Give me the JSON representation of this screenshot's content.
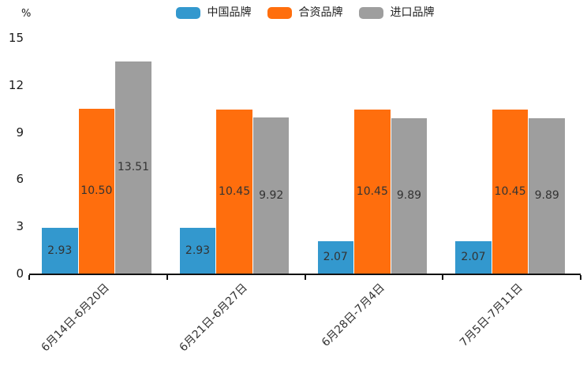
{
  "chart_data": {
    "type": "bar",
    "title": "",
    "ylabel": "%",
    "xlabel": "",
    "ylim": [
      0,
      15
    ],
    "y_ticks": [
      0,
      3,
      6,
      9,
      12,
      15
    ],
    "grid": false,
    "legend_position": "top-center",
    "categories": [
      "6月14日-6月20日",
      "6月21日-6月27日",
      "6月28日-7月4日",
      "7月5日-7月11日"
    ],
    "series": [
      {
        "name": "中国品牌",
        "color": "#3398CE",
        "values": [
          2.93,
          2.93,
          2.07,
          2.07
        ],
        "labels": [
          "2.93",
          "2.93",
          "2.07",
          "2.07"
        ]
      },
      {
        "name": "合资品牌",
        "color": "#FF6E0D",
        "values": [
          10.5,
          10.45,
          10.45,
          10.45
        ],
        "labels": [
          "10.50",
          "10.45",
          "10.45",
          "10.45"
        ]
      },
      {
        "name": "进口品牌",
        "color": "#9E9E9E",
        "values": [
          13.51,
          9.92,
          9.89,
          9.89
        ],
        "labels": [
          "13.51",
          "9.92",
          "9.89",
          "9.89"
        ]
      }
    ],
    "colors": {
      "axis": "#111111",
      "tick_text": "#1a1a1a",
      "value_text": "#333333",
      "background": "#ffffff"
    }
  }
}
